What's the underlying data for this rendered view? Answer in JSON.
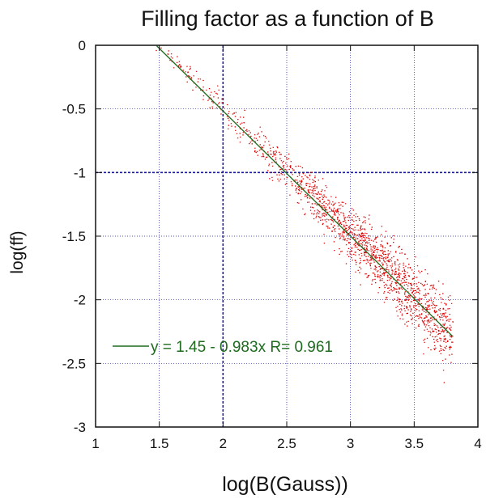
{
  "chart_data": {
    "type": "scatter",
    "title": "Filling factor as a function of B",
    "xlabel": "log(B(Gauss))",
    "ylabel": "log(ff)",
    "xlim": [
      1,
      4
    ],
    "ylim": [
      -3,
      0
    ],
    "xticks": [
      1,
      1.5,
      2,
      2.5,
      3,
      3.5,
      4
    ],
    "yticks": [
      0,
      -0.5,
      -1,
      -1.5,
      -2,
      -2.5,
      -3
    ],
    "xtick_labels": [
      "1",
      "1.5",
      "2",
      "2.5",
      "3",
      "3.5",
      "4"
    ],
    "ytick_labels": [
      "0",
      "-0.5",
      "-1",
      "-1.5",
      "-2",
      "-2.5",
      "-3"
    ],
    "grid": true,
    "major_grid_x": 2,
    "major_grid_y": -1,
    "colors": {
      "points": "#dd0000",
      "fit": "#1e6b1e",
      "grid": "#1a1aa0",
      "frame": "#111111"
    },
    "fit": {
      "intercept": 1.45,
      "slope": -0.983,
      "R": 0.961,
      "x_range": [
        1.48,
        3.8
      ],
      "label": "y = 1.45 - 0.983x   R= 0.961"
    },
    "point_cloud": {
      "x_range": [
        1.25,
        3.8
      ],
      "approx_count": 9000,
      "density_peak_x": 3.3,
      "spread_y_at_x_1_5": 0.05,
      "spread_y_at_x_3_5": 0.22
    },
    "legend": {
      "position": "bottom-left",
      "label": "y = 1.45 - 0.983x   R= 0.961"
    }
  }
}
